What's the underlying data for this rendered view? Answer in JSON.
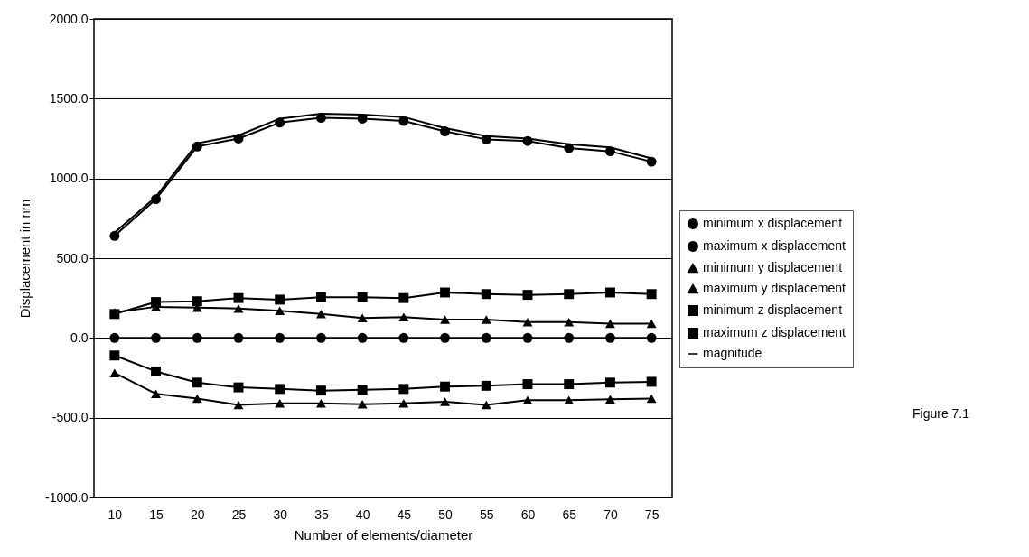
{
  "chart_data": {
    "type": "line",
    "xlabel": "Number of elements/diameter",
    "ylabel": "Displacement in nm",
    "categories": [
      "10",
      "15",
      "20",
      "25",
      "30",
      "35",
      "40",
      "45",
      "50",
      "55",
      "60",
      "65",
      "70",
      "75"
    ],
    "series": [
      {
        "name": "minimum x displacement",
        "color": "#000000",
        "marker": "circle",
        "values": [
          0,
          0,
          0,
          0,
          0,
          0,
          0,
          0,
          0,
          0,
          0,
          0,
          0,
          0
        ]
      },
      {
        "name": "maximum x displacement",
        "color": "#000000",
        "marker": "circle",
        "values": [
          640,
          870,
          1200,
          1250,
          1350,
          1380,
          1375,
          1360,
          1295,
          1245,
          1235,
          1190,
          1170,
          1105
        ]
      },
      {
        "name": "minimum y displacement",
        "color": "#000000",
        "marker": "triangle",
        "values": [
          -220,
          -350,
          -380,
          -420,
          -410,
          -410,
          -415,
          -410,
          -400,
          -420,
          -390,
          -390,
          -385,
          -380
        ]
      },
      {
        "name": "maximum y displacement",
        "color": "#000000",
        "marker": "triangle",
        "values": [
          160,
          195,
          190,
          185,
          170,
          150,
          125,
          130,
          115,
          115,
          100,
          100,
          90,
          90
        ]
      },
      {
        "name": "minimum z displacement",
        "color": "#000000",
        "marker": "square",
        "values": [
          -110,
          -210,
          -280,
          -310,
          -320,
          -330,
          -325,
          -320,
          -305,
          -300,
          -290,
          -290,
          -280,
          -275
        ]
      },
      {
        "name": "maximum z displacement",
        "color": "#000000",
        "marker": "square",
        "values": [
          150,
          225,
          230,
          250,
          240,
          255,
          255,
          250,
          285,
          275,
          270,
          275,
          285,
          275
        ]
      },
      {
        "name": "magnitude",
        "color": "#000000",
        "marker": "none",
        "values": [
          660,
          885,
          1220,
          1270,
          1375,
          1405,
          1400,
          1385,
          1315,
          1265,
          1250,
          1215,
          1195,
          1125
        ]
      }
    ],
    "ylim": [
      -1000,
      2000
    ],
    "yticks": [
      {
        "value": -1000,
        "label": "-1000.0"
      },
      {
        "value": -500,
        "label": "-500.0"
      },
      {
        "value": 0,
        "label": "0.0"
      },
      {
        "value": 500,
        "label": "500.0"
      },
      {
        "value": 1000,
        "label": "1000.0"
      },
      {
        "value": 1500,
        "label": "1500.0"
      },
      {
        "value": 2000,
        "label": "2000.0"
      }
    ],
    "grid": "y",
    "legend": "right",
    "line_style": "solid",
    "annotations": [
      "Figure 7.1"
    ]
  }
}
